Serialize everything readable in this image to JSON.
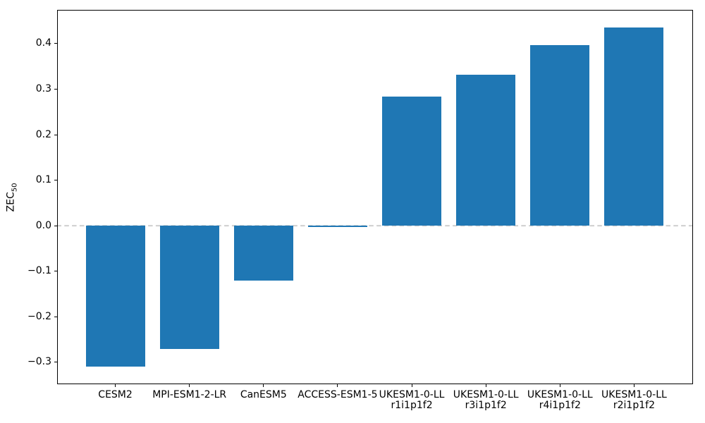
{
  "figure": {
    "background": "#ffffff"
  },
  "chart_data": {
    "type": "bar",
    "title": "",
    "xlabel": "",
    "ylabel": "ZEC_50",
    "ylabel_parts": {
      "main": "ZEC",
      "sub": "50"
    },
    "categories": [
      "CESM2",
      "MPI-ESM1-2-LR",
      "CanESM5",
      "ACCESS-ESM1-5",
      "UKESM1-0-LL\nr1i1p1f2",
      "UKESM1-0-LL\nr3i1p1f2",
      "UKESM1-0-LL\nr4i1p1f2",
      "UKESM1-0-LL\nr2i1p1f2"
    ],
    "category_lines": [
      [
        "CESM2"
      ],
      [
        "MPI-ESM1-2-LR"
      ],
      [
        "CanESM5"
      ],
      [
        "ACCESS-ESM1-5"
      ],
      [
        "UKESM1-0-LL",
        "r1i1p1f2"
      ],
      [
        "UKESM1-0-LL",
        "r3i1p1f2"
      ],
      [
        "UKESM1-0-LL",
        "r4i1p1f2"
      ],
      [
        "UKESM1-0-LL",
        "r2i1p1f2"
      ]
    ],
    "values": [
      -0.31,
      -0.27,
      -0.12,
      -0.003,
      0.284,
      0.331,
      0.396,
      0.435
    ],
    "bar_color": "#1f77b4",
    "bar_width_fraction": 0.8,
    "spine_color": "#000000",
    "text_color": "#000000",
    "zero_line": {
      "value": 0.0,
      "style": "dashed",
      "color": "#cccccc"
    },
    "xlim": [
      -0.79,
      7.79
    ],
    "ylim": [
      -0.348,
      0.474
    ],
    "yticks": [
      -0.3,
      -0.2,
      -0.1,
      0.0,
      0.1,
      0.2,
      0.3,
      0.4
    ],
    "ytick_labels": [
      "−0.3",
      "−0.2",
      "−0.1",
      "0.0",
      "0.1",
      "0.2",
      "0.3",
      "0.4"
    ],
    "grid": false,
    "legend": "none"
  }
}
